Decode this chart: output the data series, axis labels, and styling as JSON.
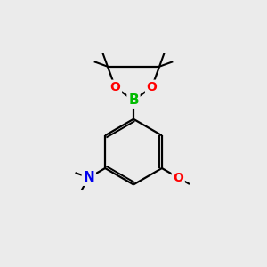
{
  "background_color": "#ebebeb",
  "bond_color": "#000000",
  "atom_colors": {
    "B": "#00bb00",
    "O": "#ff0000",
    "N": "#0000ee",
    "C": "#000000"
  },
  "figsize": [
    3.0,
    3.0
  ],
  "dpi": 100
}
